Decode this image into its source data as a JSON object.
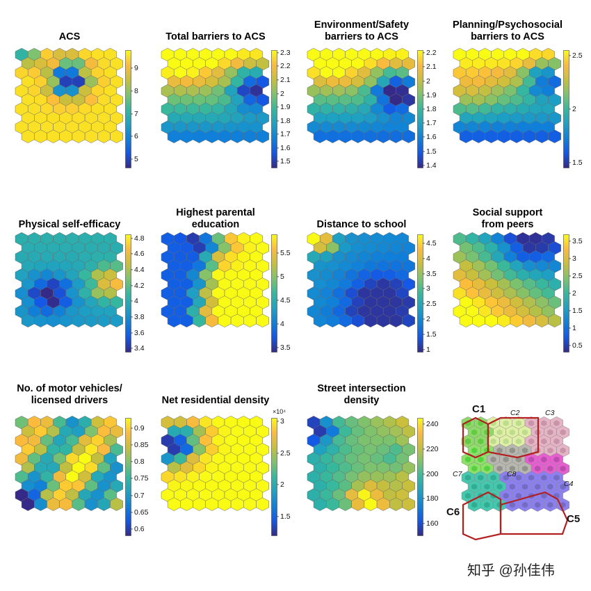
{
  "figure": {
    "map_grid": {
      "cols": 8,
      "rows": 10
    },
    "colormap": "parula",
    "panels": [
      {
        "id": "acs",
        "title_lines": [
          "ACS"
        ],
        "ticks": [
          "9",
          "8",
          "7",
          "6",
          "5"
        ],
        "cmin": 4.6,
        "cmax": 9.8,
        "pattern": "ring"
      },
      {
        "id": "total-barriers",
        "title_lines": [
          "Total barriers to ACS"
        ],
        "ticks": [
          "2.3",
          "2.2",
          "2.1",
          "2",
          "1.9",
          "1.8",
          "1.7",
          "1.6",
          "1.5"
        ],
        "cmin": 1.45,
        "cmax": 2.32,
        "pattern": "barrier"
      },
      {
        "id": "env-safety-barriers",
        "title_lines": [
          "Environment/Safety",
          "barriers to ACS"
        ],
        "ticks": [
          "2.2",
          "2.1",
          "2",
          "1.9",
          "1.8",
          "1.7",
          "1.6",
          "1.5",
          "1.4"
        ],
        "cmin": 1.38,
        "cmax": 2.22,
        "pattern": "barrier2"
      },
      {
        "id": "planning-barriers",
        "title_lines": [
          "Planning/Psychosocial",
          "barriers to ACS"
        ],
        "ticks": [
          "2.5",
          "2",
          "1.5"
        ],
        "cmin": 1.45,
        "cmax": 2.55,
        "pattern": "barrier3"
      },
      {
        "id": "self-efficacy",
        "title_lines": [
          "Physical self-efficacy"
        ],
        "ticks": [
          "4.8",
          "4.6",
          "4.4",
          "4.2",
          "4",
          "3.8",
          "3.6",
          "3.4"
        ],
        "cmin": 3.35,
        "cmax": 4.85,
        "pattern": "selfeff"
      },
      {
        "id": "parental-education",
        "title_lines": [
          "Highest parental",
          "education"
        ],
        "ticks": [
          "5.5",
          "5",
          "4.5",
          "4",
          "3.5"
        ],
        "cmin": 3.4,
        "cmax": 5.9,
        "pattern": "educ"
      },
      {
        "id": "distance",
        "title_lines": [
          "Distance to school"
        ],
        "ticks": [
          "4.5",
          "4",
          "3.5",
          "3",
          "2.5",
          "2",
          "1.5",
          "1"
        ],
        "cmin": 0.9,
        "cmax": 4.8,
        "pattern": "distance"
      },
      {
        "id": "peer-support",
        "title_lines": [
          "Social support",
          "from peers"
        ],
        "ticks": [
          "3.5",
          "3",
          "2.5",
          "2",
          "1.5",
          "1",
          "0.5"
        ],
        "cmin": 0.3,
        "cmax": 3.7,
        "pattern": "peers"
      },
      {
        "id": "vehicles",
        "title_lines": [
          "No. of motor vehicles/",
          "licensed drivers"
        ],
        "ticks": [
          "0.9",
          "0.85",
          "0.8",
          "0.75",
          "0.7",
          "0.65",
          "0.6"
        ],
        "cmin": 0.58,
        "cmax": 0.93,
        "pattern": "vehicles"
      },
      {
        "id": "residential-density",
        "title_lines": [
          "Net residential density"
        ],
        "ticks": [
          "3",
          "2.5",
          "2",
          "1.5"
        ],
        "cmin": 1.2,
        "cmax": 3.05,
        "pattern": "density",
        "sci_label": "×10⁴"
      },
      {
        "id": "intersection-density",
        "title_lines": [
          "Street intersection",
          "density"
        ],
        "ticks": [
          "240",
          "220",
          "200",
          "180",
          "160"
        ],
        "cmin": 150,
        "cmax": 245,
        "pattern": "intersect"
      }
    ],
    "cluster_panel": {
      "labels": [
        "C1",
        "C2",
        "C3",
        "C4",
        "C5",
        "C6",
        "C7",
        "C8"
      ],
      "colors": {
        "C1": "#8fd86a",
        "C2": "#dff0a6",
        "C3": "#e5b5c5",
        "C4": "#e65fd0",
        "C5": "#8c80f0",
        "C6": "#47c7ae",
        "C7": "#8ee06a",
        "C8": "#b7b7b0"
      },
      "border_color": "#b21f1f"
    }
  },
  "watermark": "知乎 @孙佳伟"
}
